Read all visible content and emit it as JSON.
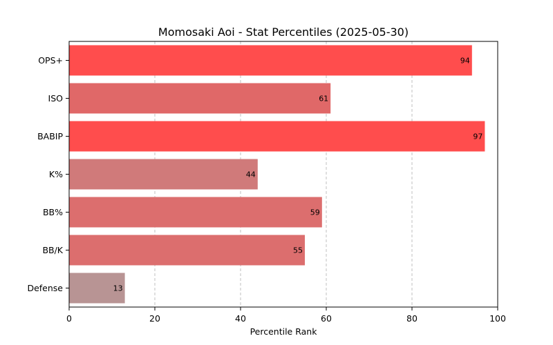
{
  "chart_data": {
    "type": "bar",
    "orientation": "horizontal",
    "title": "Momosaki Aoi - Stat Percentiles (2025-05-30)",
    "xlabel": "Percentile Rank",
    "ylabel": "",
    "xlim": [
      0,
      100
    ],
    "xticks": [
      0,
      20,
      40,
      60,
      80,
      100
    ],
    "grid": "vertical dashed",
    "categories": [
      "OPS+",
      "ISO",
      "BABIP",
      "K%",
      "BB%",
      "BB/K",
      "Defense"
    ],
    "values": [
      94,
      61,
      97,
      44,
      59,
      55,
      13
    ],
    "colors": [
      "#ff4d4d",
      "#e06868",
      "#ff4d4d",
      "#d07a7a",
      "#dc6e6e",
      "#dc6e6e",
      "#b89494"
    ]
  }
}
